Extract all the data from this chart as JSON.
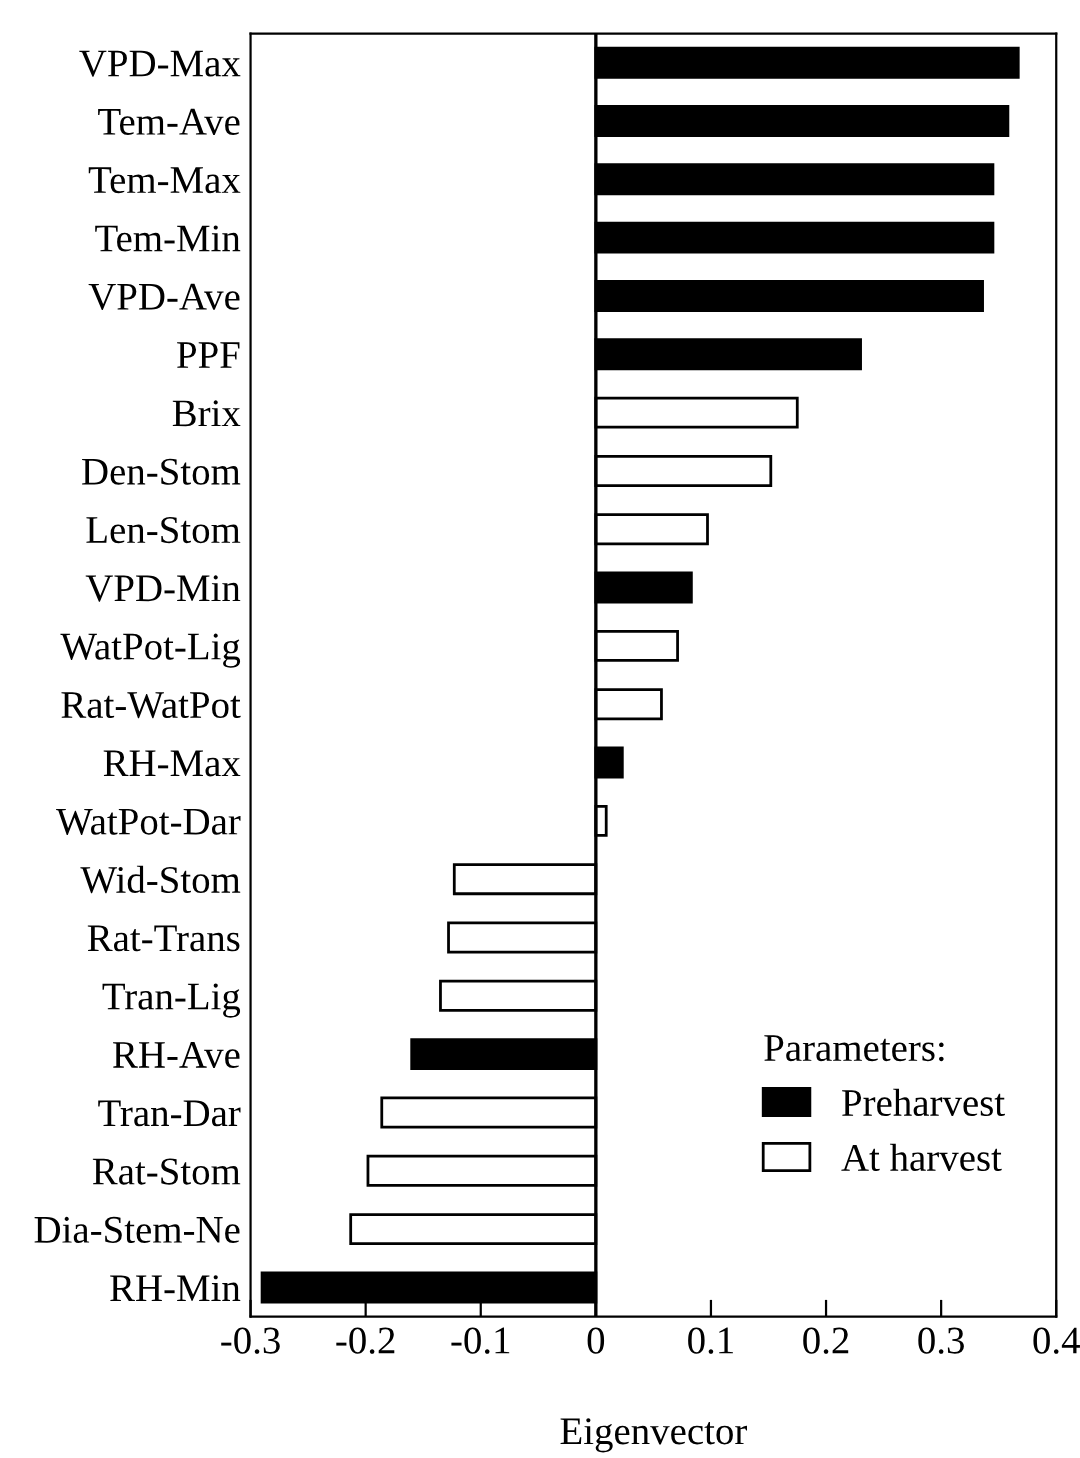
{
  "chart_data": {
    "type": "bar",
    "orientation": "horizontal",
    "xlabel": "Eigenvector",
    "legend_title": "Parameters:",
    "legend": "bottom right",
    "categories": [
      "VPD-Max",
      "Tem-Ave",
      "Tem-Max",
      "Tem-Min",
      "VPD-Ave",
      "PPF",
      "Brix",
      "Den-Stom",
      "Len-Stom",
      "VPD-Min",
      "WatPot-Lig",
      "Rat-WatPot",
      "RH-Max",
      "WatPot-Dar",
      "Wid-Stom",
      "Rat-Trans",
      "Tran-Lig",
      "RH-Ave",
      "Tran-Dar",
      "Rat-Stom",
      "Dia-Stem-Ne",
      "RH-Min"
    ],
    "series": [
      {
        "name": "Preharvest",
        "color": "#000000",
        "values": [
          0.367,
          0.358,
          0.345,
          0.345,
          0.336,
          0.23,
          null,
          null,
          null,
          0.083,
          null,
          null,
          0.023,
          null,
          null,
          null,
          null,
          -0.16,
          null,
          null,
          null,
          -0.29
        ]
      },
      {
        "name": "At harvest",
        "color": "#ffffff",
        "values": [
          null,
          null,
          null,
          null,
          null,
          null,
          0.175,
          0.152,
          0.097,
          null,
          0.071,
          0.057,
          null,
          0.009,
          -0.123,
          -0.128,
          -0.135,
          null,
          -0.186,
          -0.198,
          -0.213,
          null
        ]
      }
    ],
    "xlim": [
      -0.3,
      0.4
    ],
    "xticks": [
      -0.3,
      -0.2,
      -0.1,
      0,
      0.1,
      0.2,
      0.3,
      0.4
    ],
    "ref_lines": [
      {
        "axis": "x",
        "value": 0,
        "color": "#000000"
      }
    ],
    "grid": false
  }
}
